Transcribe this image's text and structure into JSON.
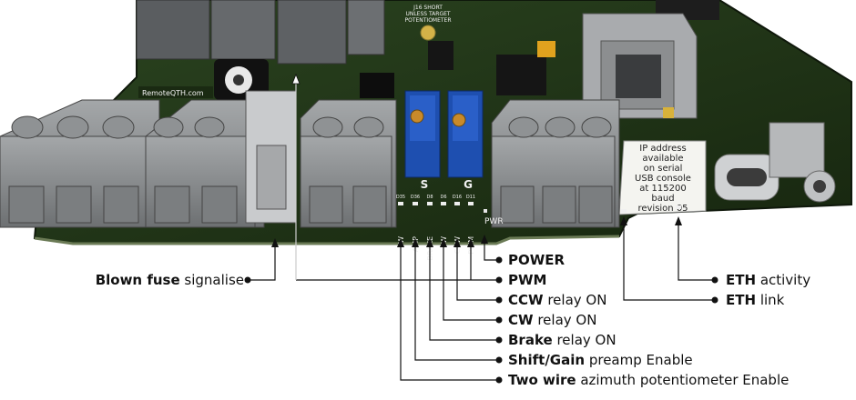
{
  "board": {
    "logo": "RemoteQTH.com",
    "jumper_note": [
      "J16 SHORT",
      "UNLESS TARGET",
      "POTENTIOMETER"
    ],
    "sw_s": "S",
    "sw_g": "G",
    "led_refs": [
      "D35",
      "D36",
      "D8",
      "D6",
      "D16",
      "D11"
    ],
    "led_labels": [
      "2W",
      "AMP",
      "BRAKE",
      "CW",
      "CCW",
      "PWM"
    ],
    "pwr_label": "PWR",
    "sticker_lines": [
      "IP address",
      "available",
      "on serial",
      "USB console",
      "at 115200",
      "baud"
    ],
    "revision": "revision 05"
  },
  "callouts": {
    "blown_fuse": {
      "bold": "Blown fuse",
      "rest": " signalise"
    },
    "power": {
      "bold": "POWER",
      "rest": ""
    },
    "pwm": {
      "bold": "PWM",
      "rest": ""
    },
    "ccw": {
      "bold": "CCW",
      "rest": " relay ON"
    },
    "cw": {
      "bold": "CW",
      "rest": " relay ON"
    },
    "brake": {
      "bold": "Brake",
      "rest": " relay ON"
    },
    "shift": {
      "bold": "Shift/Gain",
      "rest": " preamp Enable"
    },
    "two_wire": {
      "bold": "Two wire",
      "rest": " azimuth potentiometer Enable"
    },
    "eth_activity": {
      "bold": "ETH",
      "rest": " activity"
    },
    "eth_link": {
      "bold": "ETH",
      "rest": " link"
    }
  },
  "colors": {
    "pcb": "#1f3318",
    "terminal": "#8a8d8f",
    "trimmer": "#1e4fb0",
    "leader": "#111111"
  }
}
